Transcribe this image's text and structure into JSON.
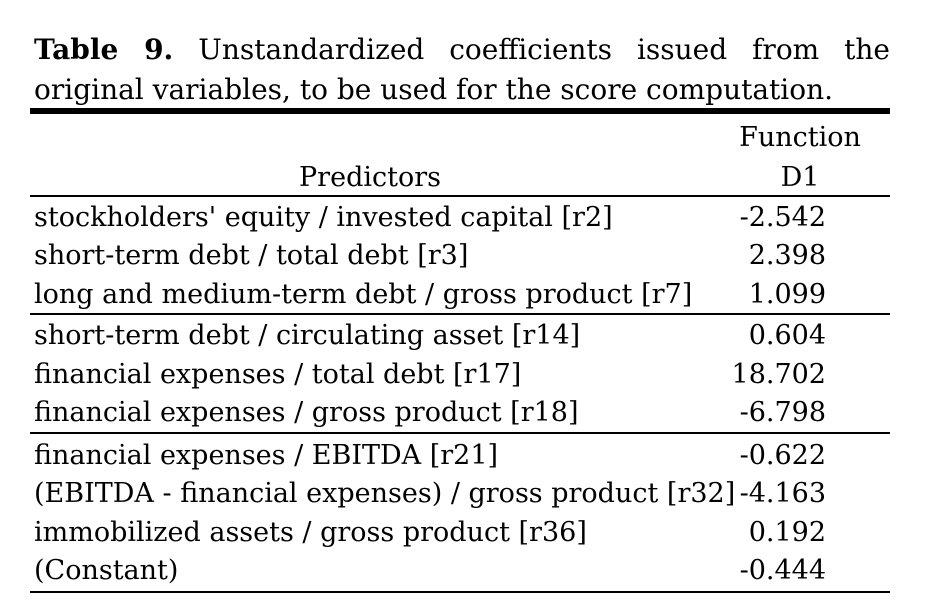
{
  "caption": {
    "label": "Table 9.",
    "text": "Unstandardized coefficients issued from the original variables, to be used for the score computation."
  },
  "header": {
    "predictors": "Predictors",
    "function": "Function",
    "d1": "D1"
  },
  "rows": [
    {
      "predictor": "stockholders' equity / invested capital [r2]",
      "value": "-2.542"
    },
    {
      "predictor": "short-term debt / total debt [r3]",
      "value": "2.398"
    },
    {
      "predictor": "long and medium-term debt / gross product [r7]",
      "value": "1.099"
    },
    {
      "predictor": "short-term debt / circulating asset [r14]",
      "value": "0.604"
    },
    {
      "predictor": "financial expenses / total debt [r17]",
      "value": "18.702"
    },
    {
      "predictor": "financial  expenses / gross product [r18]",
      "value": "-6.798"
    },
    {
      "predictor": "financial expenses / EBITDA [r21]",
      "value": "-0.622"
    },
    {
      "predictor": "(EBITDA - financial expenses) / gross product [r32]",
      "value": "-4.163"
    },
    {
      "predictor": "immobilized assets / gross product [r36]",
      "value": "0.192"
    },
    {
      "predictor": "(Constant)",
      "value": "-0.444"
    }
  ]
}
